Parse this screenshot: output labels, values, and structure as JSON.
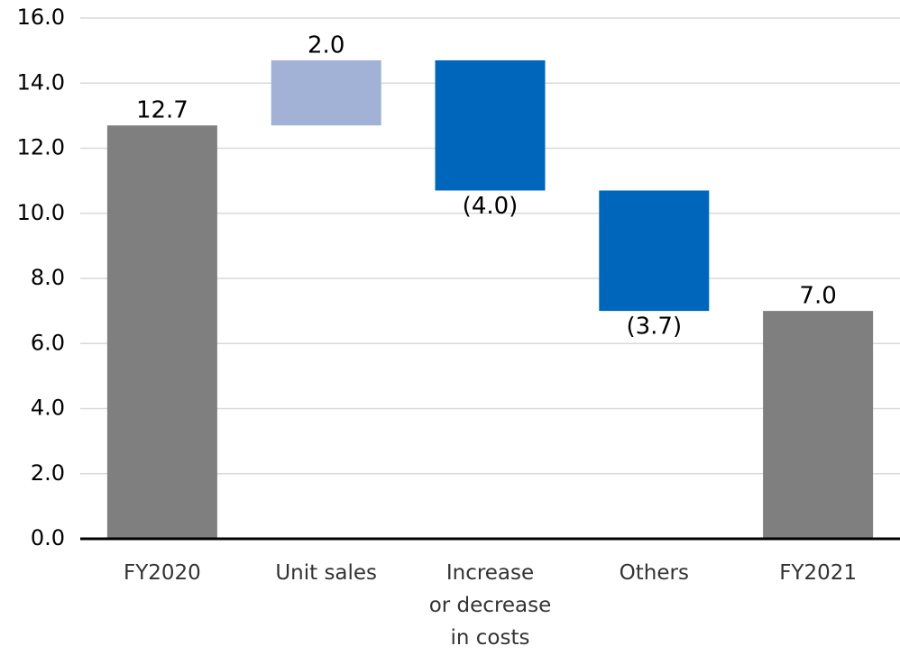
{
  "chart_data": {
    "type": "waterfall",
    "categories": [
      "FY2020",
      "Unit sales",
      "Increase\nor decrease\nin costs",
      "Others",
      "FY2021"
    ],
    "values": [
      12.7,
      2.0,
      -4.0,
      -3.7,
      7.0
    ],
    "value_labels": [
      "12.7",
      "2.0",
      "(4.0)",
      "(3.7)",
      "7.0"
    ],
    "colors": [
      "#7f7f7f",
      "#a2b2d6",
      "#0066bb",
      "#0066bb",
      "#7f7f7f"
    ],
    "ylim": [
      0,
      16
    ],
    "yticks": [
      {
        "value": 0,
        "label": "0.0"
      },
      {
        "value": 2,
        "label": "2.0"
      },
      {
        "value": 4,
        "label": "4.0"
      },
      {
        "value": 6,
        "label": "6.0"
      },
      {
        "value": 8,
        "label": "8.0"
      },
      {
        "value": 10,
        "label": "10.0"
      },
      {
        "value": 12,
        "label": "12.0"
      },
      {
        "value": 14,
        "label": "14.0"
      },
      {
        "value": 16,
        "label": "16.0"
      }
    ],
    "grid": true
  }
}
